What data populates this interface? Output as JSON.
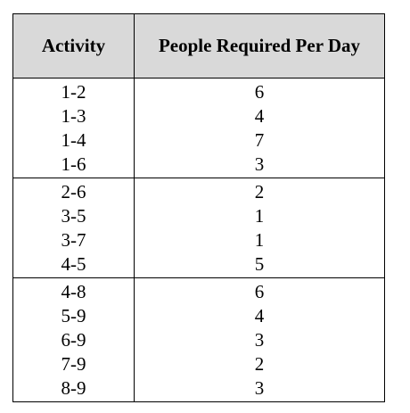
{
  "table": {
    "headers": {
      "activity": "Activity",
      "people": "People Required Per Day"
    },
    "groups": [
      {
        "rows": [
          {
            "activity": "1-2",
            "people": "6"
          },
          {
            "activity": "1-3",
            "people": "4"
          },
          {
            "activity": "1-4",
            "people": "7"
          },
          {
            "activity": "1-6",
            "people": "3"
          }
        ]
      },
      {
        "rows": [
          {
            "activity": "2-6",
            "people": "2"
          },
          {
            "activity": "3-5",
            "people": "1"
          },
          {
            "activity": "3-7",
            "people": "1"
          },
          {
            "activity": "4-5",
            "people": "5"
          }
        ]
      },
      {
        "rows": [
          {
            "activity": "4-8",
            "people": "6"
          },
          {
            "activity": "5-9",
            "people": "4"
          },
          {
            "activity": "6-9",
            "people": "3"
          },
          {
            "activity": "7-9",
            "people": "2"
          },
          {
            "activity": "8-9",
            "people": "3"
          }
        ]
      }
    ]
  }
}
